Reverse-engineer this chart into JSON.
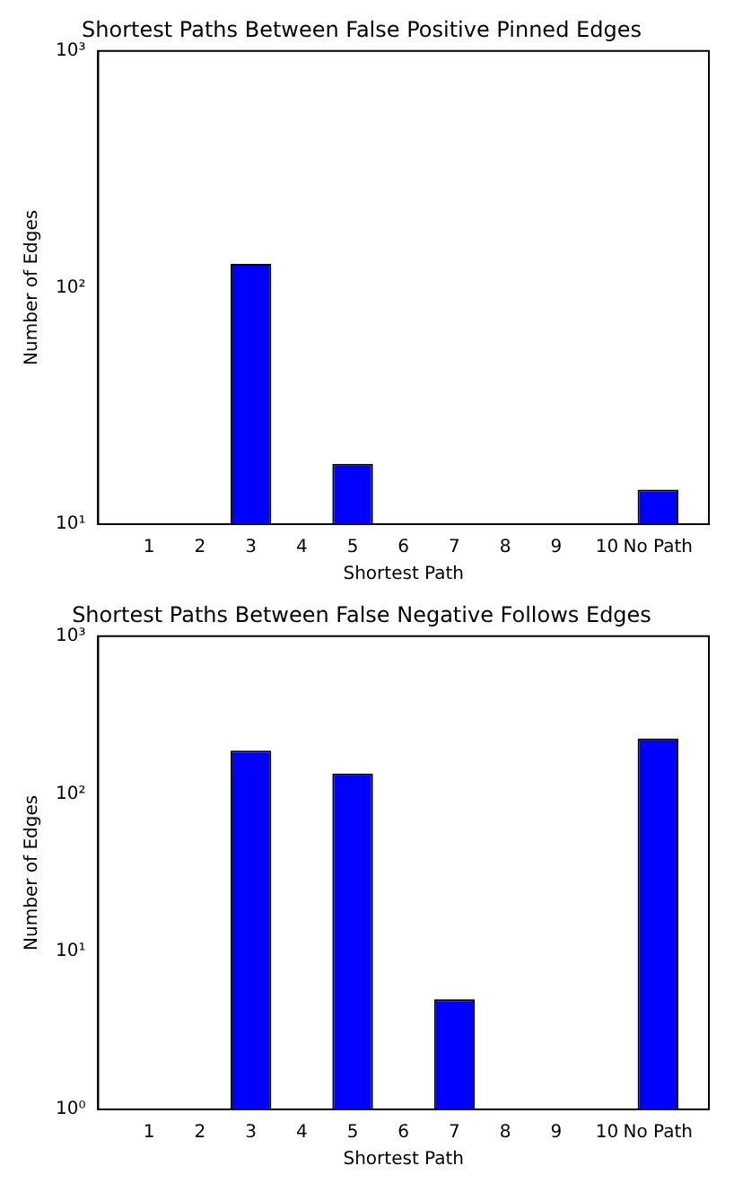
{
  "chart_data": [
    {
      "type": "bar",
      "title": "Shortest Paths Between False Positive Pinned Edges",
      "xlabel": "Shortest Path",
      "ylabel": "Number of Edges",
      "categories": [
        "1",
        "2",
        "3",
        "4",
        "5",
        "6",
        "7",
        "8",
        "9",
        "10",
        "No Path"
      ],
      "values": [
        null,
        null,
        126,
        null,
        18,
        null,
        null,
        null,
        null,
        null,
        14
      ],
      "color": "#0000ff",
      "log": true,
      "ylim": [
        10,
        1000
      ],
      "yticks": [
        {
          "value": 10,
          "label": "10¹"
        },
        {
          "value": 100,
          "label": "10²"
        },
        {
          "value": 1000,
          "label": "10³"
        }
      ],
      "grid": false,
      "legend": false
    },
    {
      "type": "bar",
      "title": "Shortest Paths Between False Negative Follows Edges",
      "xlabel": "Shortest Path",
      "ylabel": "Number of Edges",
      "categories": [
        "1",
        "2",
        "3",
        "4",
        "5",
        "6",
        "7",
        "8",
        "9",
        "10",
        "No Path"
      ],
      "values": [
        null,
        null,
        188,
        null,
        135,
        null,
        5,
        null,
        null,
        null,
        225
      ],
      "color": "#0000ff",
      "log": true,
      "ylim": [
        1,
        1000
      ],
      "yticks": [
        {
          "value": 1,
          "label": "10⁰"
        },
        {
          "value": 10,
          "label": "10¹"
        },
        {
          "value": 100,
          "label": "10²"
        },
        {
          "value": 1000,
          "label": "10³"
        }
      ],
      "grid": false,
      "legend": false
    }
  ]
}
